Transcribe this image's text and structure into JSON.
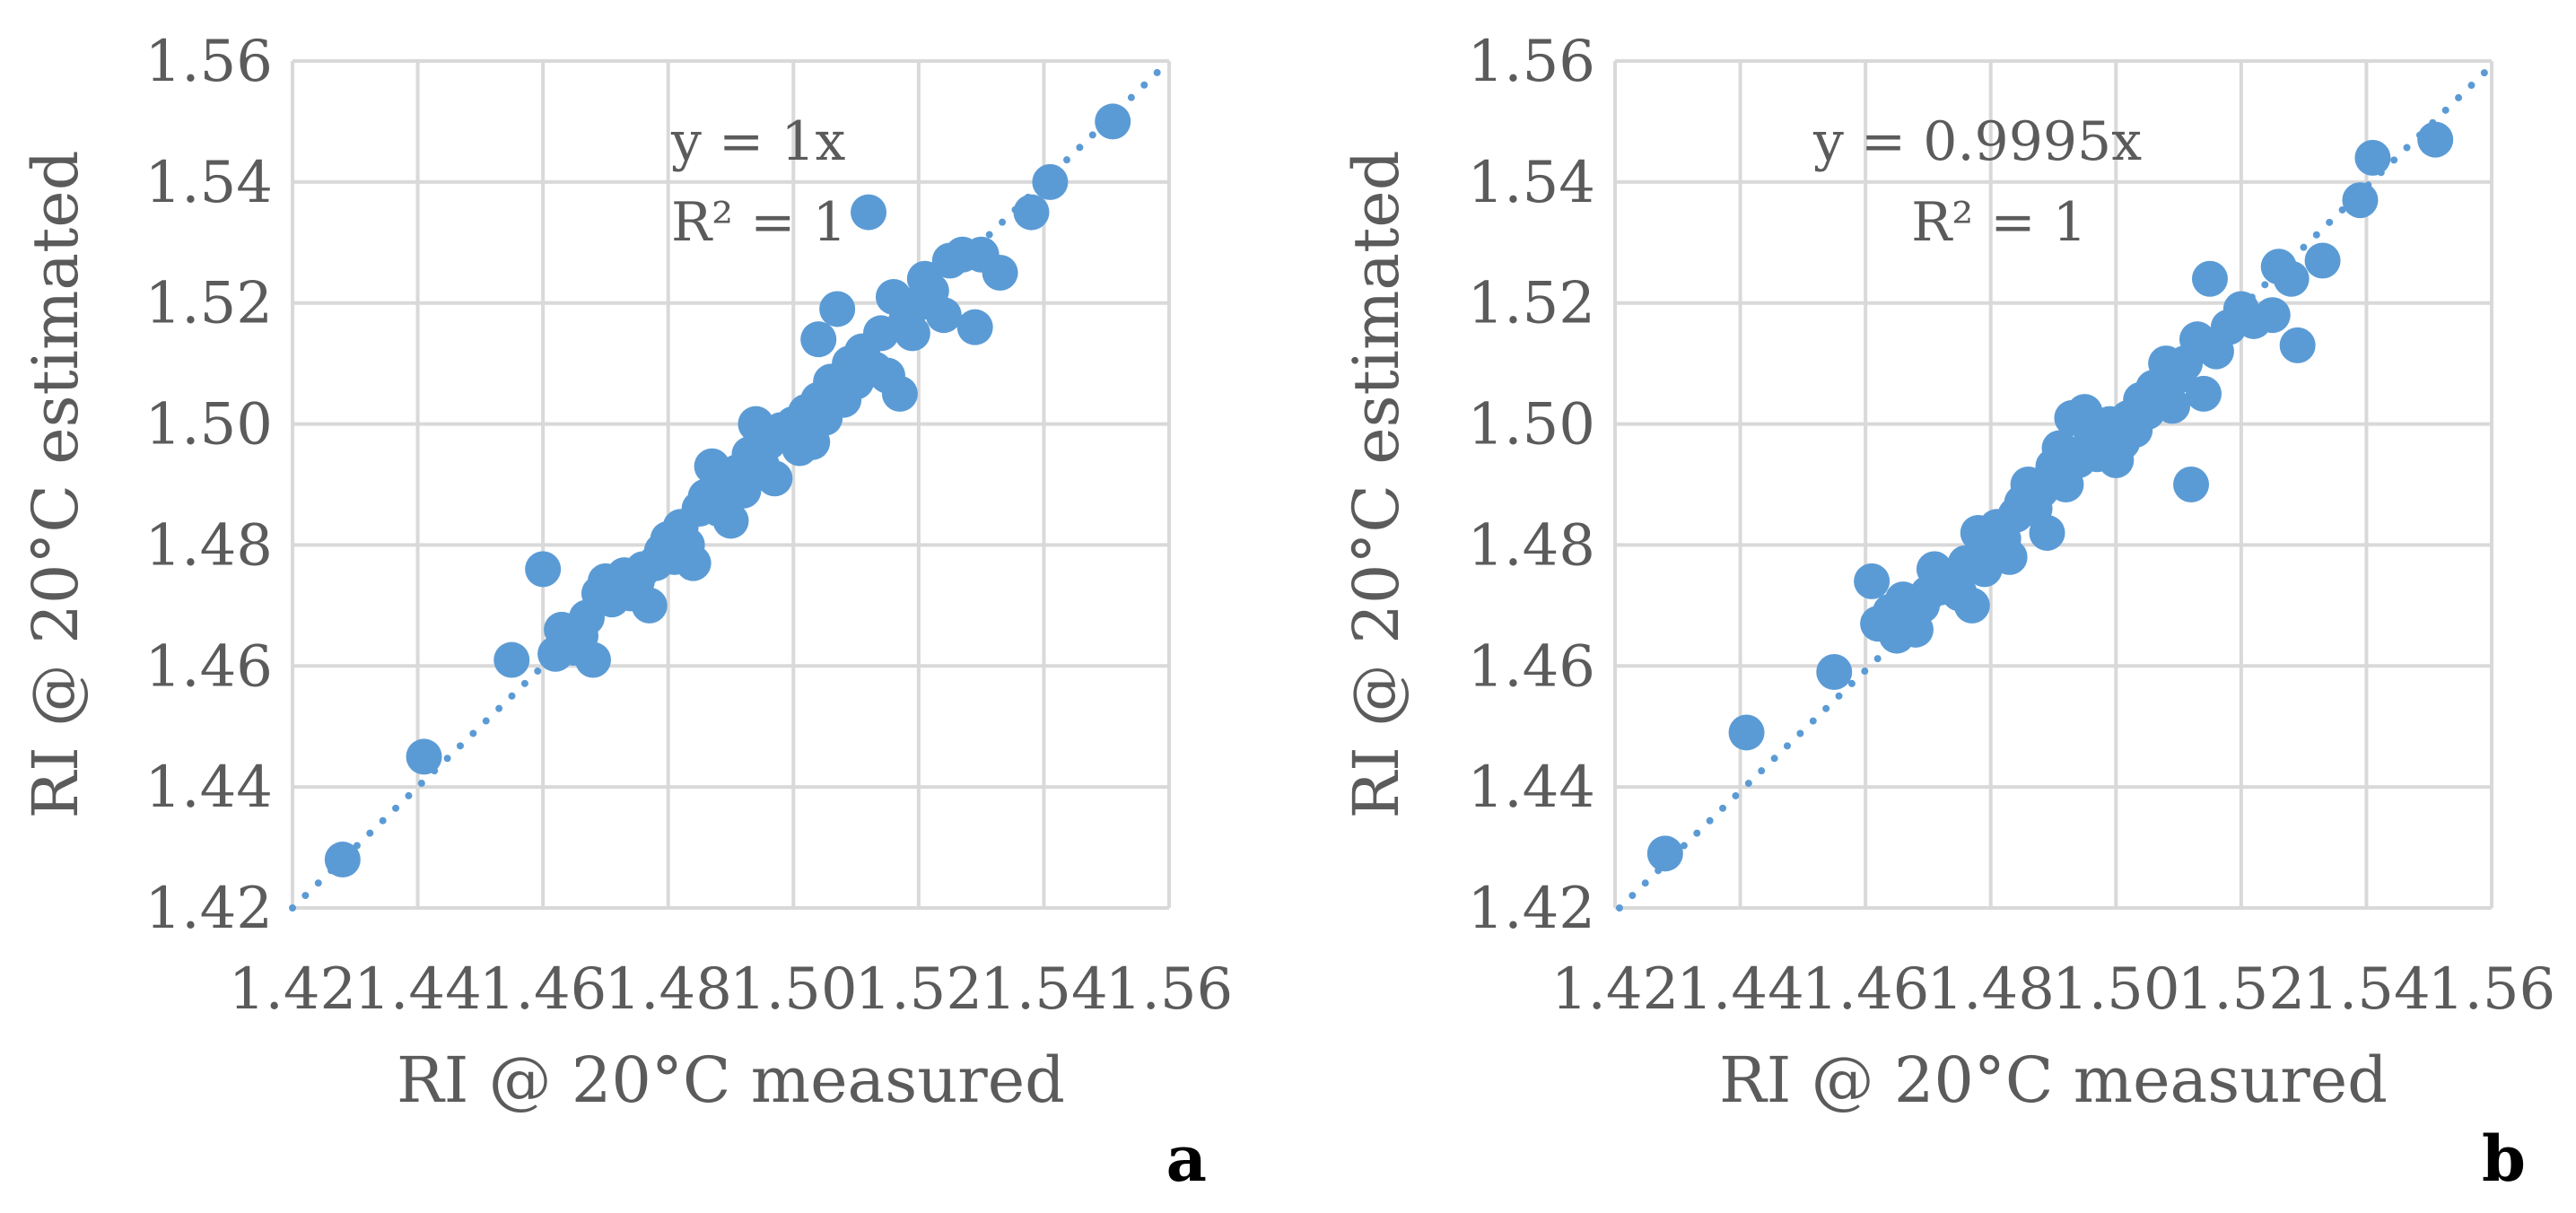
{
  "chart_data": [
    {
      "type": "scatter",
      "panel_label": "a",
      "xlabel": "RI @ 20°C measured",
      "ylabel": "RI @ 20°C estimated",
      "xlim": [
        1.42,
        1.56
      ],
      "ylim": [
        1.42,
        1.56
      ],
      "xticks": [
        "1.42",
        "1.44",
        "1.46",
        "1.48",
        "1.50",
        "1.52",
        "1.54",
        "1.56"
      ],
      "yticks": [
        "1.42",
        "1.44",
        "1.46",
        "1.48",
        "1.50",
        "1.52",
        "1.54",
        "1.56"
      ],
      "grid": true,
      "trendline": {
        "type": "linear-through-origin",
        "slope": 1,
        "style": "dotted"
      },
      "equation": "y = 1x",
      "r_squared": "R² = 1",
      "marker_color": "#5b9bd5",
      "points": [
        [
          1.428,
          1.428
        ],
        [
          1.441,
          1.445
        ],
        [
          1.455,
          1.461
        ],
        [
          1.46,
          1.476
        ],
        [
          1.462,
          1.462
        ],
        [
          1.463,
          1.466
        ],
        [
          1.465,
          1.463
        ],
        [
          1.466,
          1.465
        ],
        [
          1.467,
          1.468
        ],
        [
          1.468,
          1.461
        ],
        [
          1.469,
          1.472
        ],
        [
          1.47,
          1.474
        ],
        [
          1.471,
          1.471
        ],
        [
          1.472,
          1.473
        ],
        [
          1.473,
          1.475
        ],
        [
          1.474,
          1.472
        ],
        [
          1.475,
          1.474
        ],
        [
          1.476,
          1.476
        ],
        [
          1.477,
          1.47
        ],
        [
          1.478,
          1.477
        ],
        [
          1.479,
          1.479
        ],
        [
          1.48,
          1.481
        ],
        [
          1.481,
          1.478
        ],
        [
          1.482,
          1.483
        ],
        [
          1.483,
          1.48
        ],
        [
          1.484,
          1.477
        ],
        [
          1.485,
          1.486
        ],
        [
          1.486,
          1.488
        ],
        [
          1.487,
          1.493
        ],
        [
          1.488,
          1.486
        ],
        [
          1.489,
          1.49
        ],
        [
          1.49,
          1.484
        ],
        [
          1.491,
          1.492
        ],
        [
          1.492,
          1.489
        ],
        [
          1.493,
          1.495
        ],
        [
          1.494,
          1.5
        ],
        [
          1.495,
          1.493
        ],
        [
          1.496,
          1.497
        ],
        [
          1.497,
          1.491
        ],
        [
          1.498,
          1.499
        ],
        [
          1.499,
          1.498
        ],
        [
          1.5,
          1.5
        ],
        [
          1.501,
          1.496
        ],
        [
          1.502,
          1.502
        ],
        [
          1.503,
          1.497
        ],
        [
          1.504,
          1.504
        ],
        [
          1.504,
          1.514
        ],
        [
          1.505,
          1.501
        ],
        [
          1.506,
          1.507
        ],
        [
          1.507,
          1.519
        ],
        [
          1.508,
          1.504
        ],
        [
          1.509,
          1.51
        ],
        [
          1.51,
          1.507
        ],
        [
          1.511,
          1.512
        ],
        [
          1.512,
          1.535
        ],
        [
          1.513,
          1.509
        ],
        [
          1.514,
          1.515
        ],
        [
          1.515,
          1.508
        ],
        [
          1.516,
          1.521
        ],
        [
          1.517,
          1.505
        ],
        [
          1.518,
          1.517
        ],
        [
          1.519,
          1.515
        ],
        [
          1.52,
          1.52
        ],
        [
          1.521,
          1.524
        ],
        [
          1.522,
          1.522
        ],
        [
          1.524,
          1.518
        ],
        [
          1.525,
          1.527
        ],
        [
          1.527,
          1.528
        ],
        [
          1.529,
          1.516
        ],
        [
          1.53,
          1.528
        ],
        [
          1.533,
          1.525
        ],
        [
          1.538,
          1.535
        ],
        [
          1.541,
          1.54
        ],
        [
          1.551,
          1.55
        ]
      ]
    },
    {
      "type": "scatter",
      "panel_label": "b",
      "xlabel": "RI @ 20°C measured",
      "ylabel": "RI @ 20°C estimated",
      "xlim": [
        1.42,
        1.56
      ],
      "ylim": [
        1.42,
        1.56
      ],
      "xticks": [
        "1.42",
        "1.44",
        "1.46",
        "1.48",
        "1.50",
        "1.52",
        "1.54",
        "1.56"
      ],
      "yticks": [
        "1.42",
        "1.44",
        "1.46",
        "1.48",
        "1.50",
        "1.52",
        "1.54",
        "1.56"
      ],
      "grid": true,
      "trendline": {
        "type": "linear-through-origin",
        "slope": 0.9995,
        "style": "dotted"
      },
      "equation": "y = 0.9995x",
      "r_squared": "R² = 1",
      "marker_color": "#5b9bd5",
      "points": [
        [
          1.428,
          1.429
        ],
        [
          1.441,
          1.449
        ],
        [
          1.455,
          1.459
        ],
        [
          1.461,
          1.474
        ],
        [
          1.462,
          1.467
        ],
        [
          1.464,
          1.469
        ],
        [
          1.465,
          1.465
        ],
        [
          1.466,
          1.471
        ],
        [
          1.467,
          1.468
        ],
        [
          1.468,
          1.466
        ],
        [
          1.469,
          1.47
        ],
        [
          1.47,
          1.472
        ],
        [
          1.471,
          1.476
        ],
        [
          1.472,
          1.473
        ],
        [
          1.473,
          1.474
        ],
        [
          1.474,
          1.475
        ],
        [
          1.475,
          1.472
        ],
        [
          1.476,
          1.477
        ],
        [
          1.477,
          1.47
        ],
        [
          1.478,
          1.482
        ],
        [
          1.479,
          1.476
        ],
        [
          1.48,
          1.48
        ],
        [
          1.481,
          1.483
        ],
        [
          1.482,
          1.481
        ],
        [
          1.483,
          1.478
        ],
        [
          1.484,
          1.485
        ],
        [
          1.485,
          1.487
        ],
        [
          1.486,
          1.49
        ],
        [
          1.487,
          1.486
        ],
        [
          1.488,
          1.489
        ],
        [
          1.489,
          1.482
        ],
        [
          1.49,
          1.493
        ],
        [
          1.491,
          1.496
        ],
        [
          1.492,
          1.49
        ],
        [
          1.493,
          1.501
        ],
        [
          1.494,
          1.494
        ],
        [
          1.495,
          1.502
        ],
        [
          1.496,
          1.497
        ],
        [
          1.497,
          1.495
        ],
        [
          1.498,
          1.499
        ],
        [
          1.499,
          1.5
        ],
        [
          1.5,
          1.494
        ],
        [
          1.501,
          1.497
        ],
        [
          1.502,
          1.501
        ],
        [
          1.503,
          1.499
        ],
        [
          1.504,
          1.504
        ],
        [
          1.505,
          1.502
        ],
        [
          1.506,
          1.506
        ],
        [
          1.507,
          1.505
        ],
        [
          1.508,
          1.51
        ],
        [
          1.509,
          1.503
        ],
        [
          1.51,
          1.508
        ],
        [
          1.511,
          1.51
        ],
        [
          1.512,
          1.49
        ],
        [
          1.513,
          1.514
        ],
        [
          1.514,
          1.505
        ],
        [
          1.515,
          1.524
        ],
        [
          1.516,
          1.512
        ],
        [
          1.518,
          1.516
        ],
        [
          1.52,
          1.519
        ],
        [
          1.522,
          1.517
        ],
        [
          1.525,
          1.518
        ],
        [
          1.526,
          1.526
        ],
        [
          1.528,
          1.524
        ],
        [
          1.529,
          1.513
        ],
        [
          1.533,
          1.527
        ],
        [
          1.539,
          1.537
        ],
        [
          1.541,
          1.544
        ],
        [
          1.551,
          1.547
        ]
      ]
    }
  ]
}
